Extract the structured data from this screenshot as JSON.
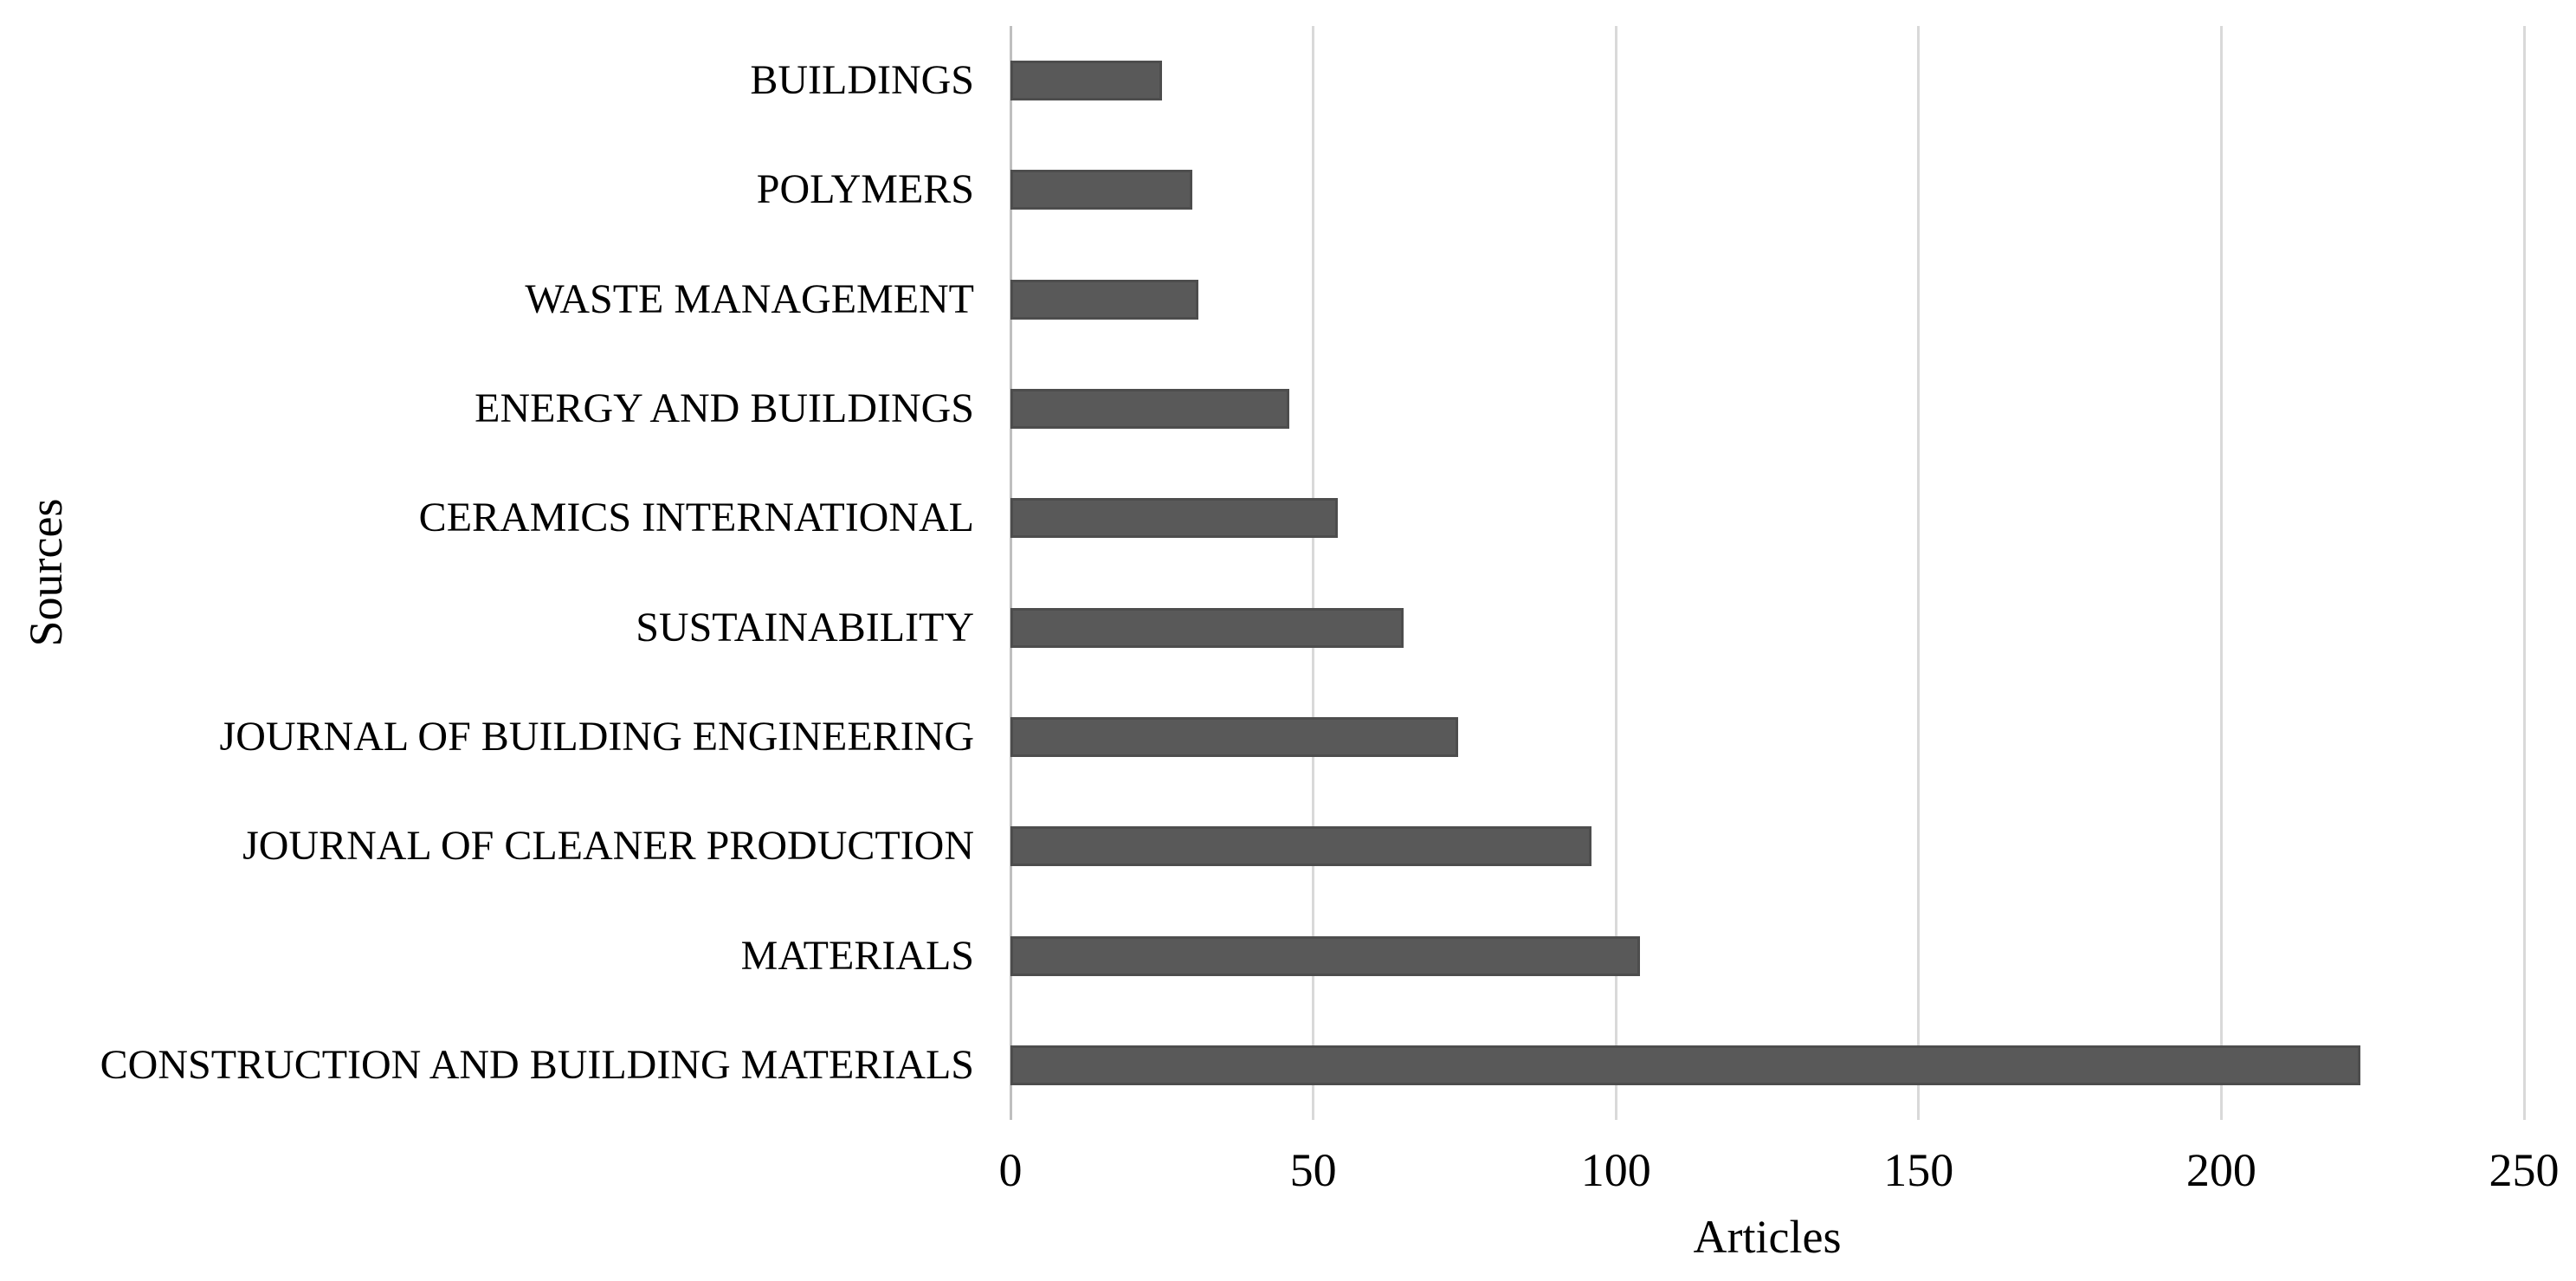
{
  "chart_data": {
    "type": "bar",
    "orientation": "horizontal",
    "title": "",
    "xlabel": "Articles",
    "ylabel": "Sources",
    "categories": [
      "BUILDINGS",
      "POLYMERS",
      "WASTE MANAGEMENT",
      "ENERGY AND BUILDINGS",
      "CERAMICS INTERNATIONAL",
      "SUSTAINABILITY",
      "JOURNAL OF BUILDING ENGINEERING",
      "JOURNAL OF CLEANER PRODUCTION",
      "MATERIALS",
      "CONSTRUCTION AND BUILDING MATERIALS"
    ],
    "values": [
      25,
      30,
      31,
      46,
      54,
      65,
      74,
      96,
      104,
      223
    ],
    "xlim": [
      0,
      250
    ],
    "xticks": [
      0,
      50,
      100,
      150,
      200,
      250
    ],
    "grid": true,
    "legend": false,
    "colors": {
      "bar": "#595959",
      "bar_border": "#4d4d4d",
      "gridline": "#d9d9d9",
      "axis_line": "#bfbfbf",
      "text": "#000000",
      "background": "#ffffff"
    }
  }
}
